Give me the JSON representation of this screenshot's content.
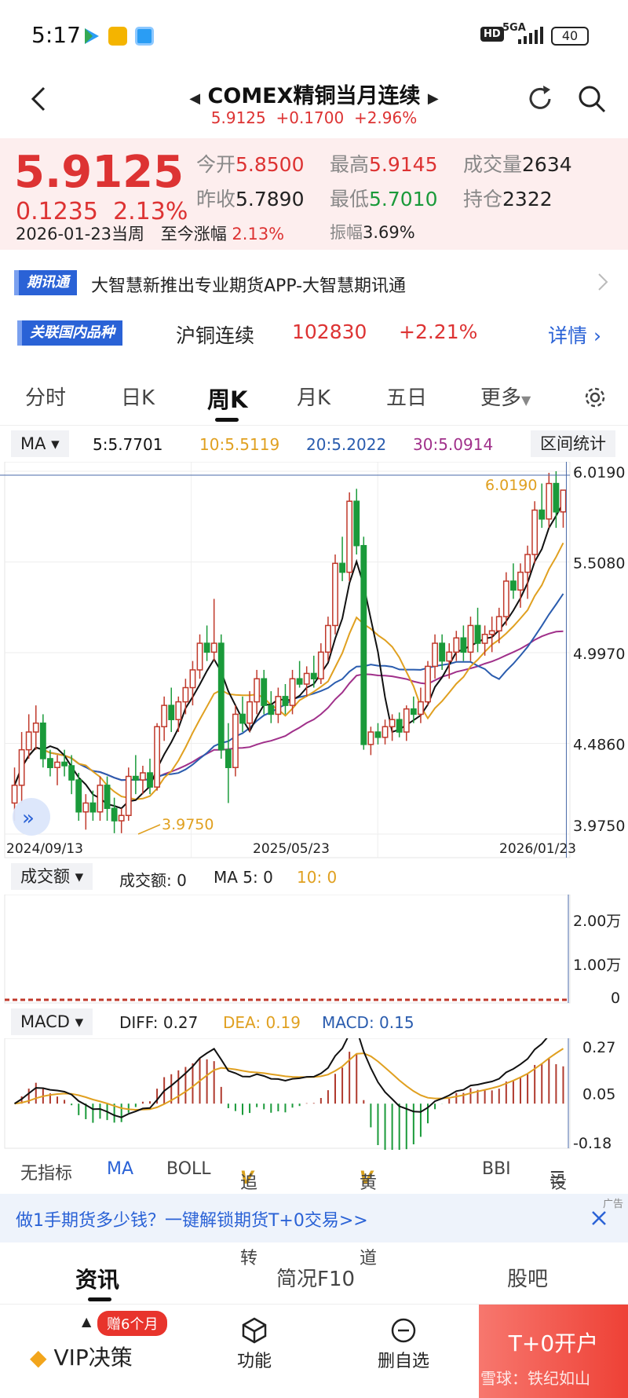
{
  "status_bar": {
    "time": "5:17",
    "network": "5GA",
    "hd": "HD",
    "battery": "40"
  },
  "header": {
    "title": "COMEX精铜当月连续",
    "price": "5.9125",
    "change": "+0.1700",
    "pct": "+2.96%"
  },
  "quote": {
    "last": "5.9125",
    "change": "0.1235",
    "change_pct": "2.13%",
    "date_label": "2026-01-23当周",
    "ytd_label": "至今涨幅",
    "ytd_value": "2.13%",
    "open_label": "今开",
    "open": "5.8500",
    "high_label": "最高",
    "high": "5.9145",
    "volume_label": "成交量",
    "volume": "2634",
    "prev_label": "昨收",
    "prev": "5.7890",
    "low_label": "最低",
    "low": "5.7010",
    "oi_label": "持仓",
    "oi": "2322",
    "amp_label": "振幅",
    "amp": "3.69%"
  },
  "news": {
    "badge": "期讯通",
    "text": "大智慧新推出专业期货APP-大智慧期讯通"
  },
  "related": {
    "badge": "关联国内品种",
    "name": "沪铜连续",
    "price": "102830",
    "pct": "+2.21%",
    "detail": "详情"
  },
  "tabs": [
    "分时",
    "日K",
    "周K",
    "月K",
    "五日",
    "更多"
  ],
  "ma_bar": {
    "selector": "MA",
    "ma5": "5:5.7701",
    "ma10": "10:5.5119",
    "ma20": "20:5.2022",
    "ma30": "30:5.0914",
    "range_stats": "区间统计",
    "colors": {
      "ma5": "#111111",
      "ma10": "#e0a020",
      "ma20": "#2a5cae",
      "ma30": "#a0308a"
    }
  },
  "chart_data": {
    "type": "candlestick",
    "y_ticks": [
      "6.0190",
      "5.5080",
      "4.9970",
      "4.4860",
      "3.9750"
    ],
    "x_labels": [
      "2024/09/13",
      "2025/05/23",
      "2026/01/23"
    ],
    "max_label": "6.0190",
    "min_label": "3.9750",
    "ylim": [
      3.975,
      6.019
    ],
    "candles": [
      [
        4.15,
        4.35,
        4.05,
        4.25
      ],
      [
        4.25,
        4.55,
        4.15,
        4.45
      ],
      [
        4.45,
        4.65,
        4.4,
        4.55
      ],
      [
        4.55,
        4.7,
        4.45,
        4.6
      ],
      [
        4.6,
        4.65,
        4.35,
        4.4
      ],
      [
        4.4,
        4.45,
        4.3,
        4.35
      ],
      [
        4.35,
        4.42,
        4.25,
        4.38
      ],
      [
        4.38,
        4.45,
        4.3,
        4.36
      ],
      [
        4.36,
        4.42,
        4.2,
        4.28
      ],
      [
        4.28,
        4.32,
        4.05,
        4.1
      ],
      [
        4.1,
        4.2,
        4.0,
        4.15
      ],
      [
        4.15,
        4.22,
        4.05,
        4.1
      ],
      [
        4.1,
        4.3,
        4.05,
        4.25
      ],
      [
        4.25,
        4.3,
        4.05,
        4.12
      ],
      [
        4.12,
        4.18,
        3.98,
        4.05
      ],
      [
        4.05,
        4.12,
        3.98,
        4.08
      ],
      [
        4.08,
        4.35,
        4.05,
        4.3
      ],
      [
        4.3,
        4.42,
        4.2,
        4.28
      ],
      [
        4.28,
        4.36,
        4.2,
        4.32
      ],
      [
        4.32,
        4.4,
        4.2,
        4.24
      ],
      [
        4.24,
        4.6,
        4.22,
        4.58
      ],
      [
        4.58,
        4.75,
        4.5,
        4.7
      ],
      [
        4.7,
        4.8,
        4.55,
        4.62
      ],
      [
        4.62,
        4.75,
        4.55,
        4.72
      ],
      [
        4.72,
        4.85,
        4.65,
        4.8
      ],
      [
        4.8,
        4.95,
        4.7,
        4.9
      ],
      [
        4.9,
        5.1,
        4.85,
        5.05
      ],
      [
        5.05,
        5.15,
        4.95,
        5.0
      ],
      [
        5.0,
        5.3,
        4.95,
        5.05
      ],
      [
        5.05,
        5.1,
        4.4,
        4.45
      ],
      [
        4.45,
        4.6,
        4.15,
        4.35
      ],
      [
        4.35,
        4.7,
        4.3,
        4.65
      ],
      [
        4.65,
        4.75,
        4.55,
        4.6
      ],
      [
        4.6,
        4.78,
        4.55,
        4.72
      ],
      [
        4.72,
        4.9,
        4.65,
        4.85
      ],
      [
        4.85,
        4.9,
        4.65,
        4.7
      ],
      [
        4.7,
        4.78,
        4.6,
        4.65
      ],
      [
        4.65,
        4.8,
        4.6,
        4.75
      ],
      [
        4.75,
        4.82,
        4.65,
        4.7
      ],
      [
        4.7,
        4.9,
        4.65,
        4.85
      ],
      [
        4.85,
        4.95,
        4.8,
        4.82
      ],
      [
        4.82,
        4.92,
        4.75,
        4.88
      ],
      [
        4.88,
        4.98,
        4.8,
        4.85
      ],
      [
        4.85,
        5.05,
        4.82,
        5.0
      ],
      [
        5.0,
        5.2,
        4.95,
        5.15
      ],
      [
        5.15,
        5.55,
        5.1,
        5.5
      ],
      [
        5.5,
        5.65,
        5.4,
        5.45
      ],
      [
        5.45,
        5.9,
        5.4,
        5.85
      ],
      [
        5.85,
        5.92,
        5.55,
        5.6
      ],
      [
        5.6,
        5.65,
        4.45,
        4.48
      ],
      [
        4.48,
        4.58,
        4.42,
        4.55
      ],
      [
        4.55,
        4.6,
        4.48,
        4.52
      ],
      [
        4.52,
        4.62,
        4.48,
        4.58
      ],
      [
        4.58,
        4.65,
        4.5,
        4.62
      ],
      [
        4.62,
        4.66,
        4.52,
        4.55
      ],
      [
        4.55,
        4.7,
        4.5,
        4.68
      ],
      [
        4.68,
        4.75,
        4.6,
        4.65
      ],
      [
        4.65,
        4.8,
        4.6,
        4.72
      ],
      [
        4.72,
        4.95,
        4.7,
        4.92
      ],
      [
        4.92,
        5.1,
        4.85,
        5.05
      ],
      [
        5.05,
        5.1,
        4.9,
        4.95
      ],
      [
        4.95,
        5.05,
        4.85,
        5.0
      ],
      [
        5.0,
        5.12,
        4.95,
        5.08
      ],
      [
        5.08,
        5.15,
        4.95,
        5.0
      ],
      [
        5.0,
        5.2,
        4.95,
        5.15
      ],
      [
        5.15,
        5.25,
        5.0,
        5.05
      ],
      [
        5.05,
        5.15,
        4.98,
        5.1
      ],
      [
        5.1,
        5.2,
        5.0,
        5.12
      ],
      [
        5.12,
        5.25,
        5.05,
        5.2
      ],
      [
        5.2,
        5.45,
        5.15,
        5.4
      ],
      [
        5.4,
        5.5,
        5.3,
        5.35
      ],
      [
        5.35,
        5.5,
        5.25,
        5.45
      ],
      [
        5.45,
        5.6,
        5.3,
        5.55
      ],
      [
        5.55,
        5.85,
        5.5,
        5.8
      ],
      [
        5.8,
        5.95,
        5.7,
        5.75
      ],
      [
        5.75,
        6.01,
        5.7,
        5.95
      ],
      [
        5.95,
        6.019,
        5.7,
        5.79
      ],
      [
        5.79,
        5.9145,
        5.701,
        5.9125
      ]
    ],
    "ma5_color": "#111111",
    "ma10_color": "#e0a020",
    "ma20_color": "#2a5cae",
    "ma30_color": "#a0308a",
    "up_color": "#c0392b",
    "down_color": "#1a9a3a"
  },
  "volume_bar": {
    "selector": "成交额",
    "value_label": "成交额: 0",
    "ma5_label": "MA 5: 0",
    "ma10_label": "10: 0",
    "y_ticks": [
      "2.00万",
      "1.00万",
      "0"
    ]
  },
  "macd_bar": {
    "selector": "MACD",
    "diff": "DIFF: 0.27",
    "dea": "DEA: 0.19",
    "macd": "MACD: 0.15",
    "y_ticks": [
      "0.27",
      "0.05",
      "-0.18"
    ]
  },
  "indicators": [
    "无指标",
    "MA",
    "BOLL",
    "追击反转",
    "黄金通道",
    "BBI",
    "设置"
  ],
  "ad": {
    "text": "做1手期货多少钱？一键解锁期货T+0交易>>",
    "tag": "广告"
  },
  "section_tabs": [
    "资讯",
    "简况F10",
    "股吧"
  ],
  "footer": {
    "gift": "赠6个月",
    "vip": "VIP决策",
    "func": "功能",
    "remove": "删自选",
    "open_account": "T+0开户",
    "watermark": "雪球：铁纪如山"
  }
}
